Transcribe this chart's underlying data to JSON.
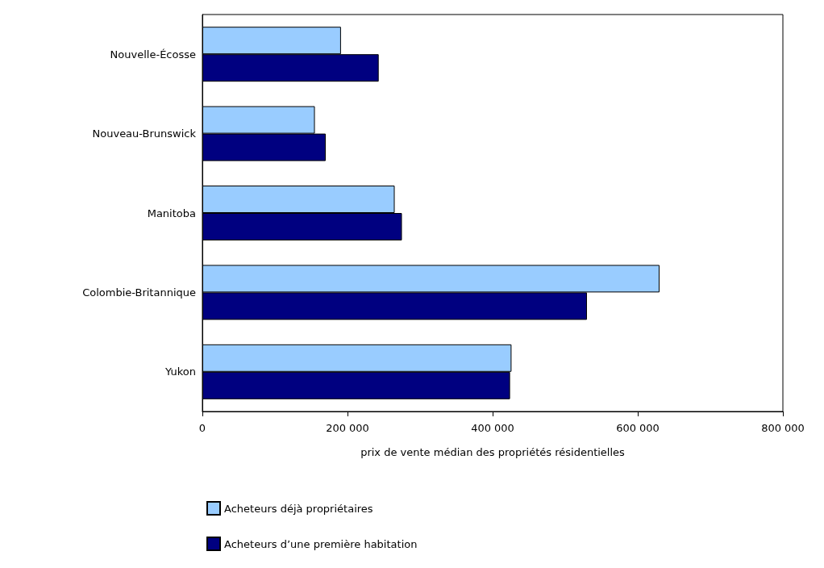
{
  "chart_data": {
    "type": "bar",
    "orientation": "horizontal",
    "xlabel": "prix de vente médian des propriétés résidentielles",
    "categories": [
      "Nouvelle-Écosse",
      "Nouveau-Brunswick",
      "Manitoba",
      "Colombie-Britannique",
      "Yukon"
    ],
    "series": [
      {
        "name": "Acheteurs déjà propriétaires",
        "color": "#99ccff",
        "values": [
          191000,
          155000,
          265000,
          630000,
          426000
        ]
      },
      {
        "name": "Acheteurs d’une première habitation",
        "color": "#000080",
        "values": [
          243000,
          170000,
          275000,
          530000,
          424000
        ]
      }
    ],
    "xlim": [
      0,
      800000
    ],
    "xticks": [
      0,
      {
        "value": 200000,
        "label": "200 000"
      },
      {
        "value": 400000,
        "label": "400 000"
      },
      {
        "value": 600000,
        "label": "600 000"
      },
      {
        "value": 800000,
        "label": "800 000"
      }
    ],
    "grid": false,
    "legend": "bottom left"
  }
}
